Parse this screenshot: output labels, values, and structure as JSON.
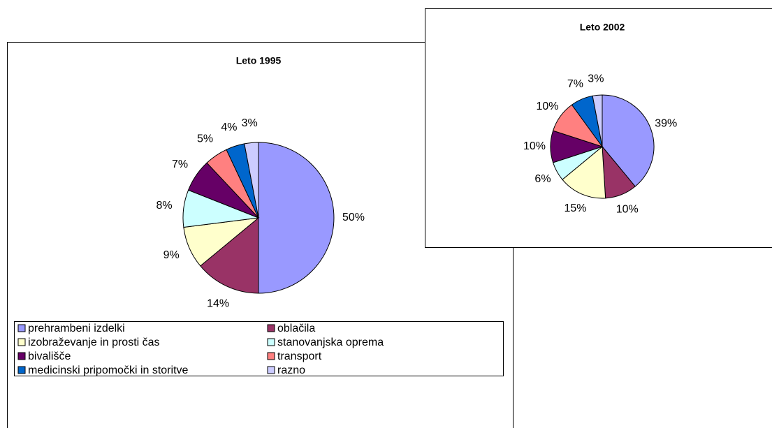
{
  "chart_data": [
    {
      "type": "pie",
      "title": "Leto 1995",
      "categories": [
        "prehrambeni izdelki",
        "oblačila",
        "izobraževanje in prosti čas",
        "stanovanjska oprema",
        "bivališče",
        "transport",
        "medicinski pripomočki in storitve",
        "razno"
      ],
      "values": [
        50,
        14,
        9,
        8,
        7,
        5,
        4,
        3
      ],
      "value_labels": [
        "50%",
        "14%",
        "9%",
        "8%",
        "7%",
        "5%",
        "4%",
        "3%"
      ],
      "colors": [
        "#9999ff",
        "#993366",
        "#ffffcc",
        "#ccffff",
        "#660066",
        "#ff8080",
        "#0066cc",
        "#ccccff"
      ],
      "legend": "bottom"
    },
    {
      "type": "pie",
      "title": "Leto 2002",
      "values": [
        39,
        10,
        15,
        6,
        10,
        10,
        7,
        3
      ],
      "value_labels": [
        "39%",
        "10%",
        "15%",
        "6%",
        "10%",
        "10%",
        "7%",
        "3%"
      ],
      "colors": [
        "#9999ff",
        "#993366",
        "#ffffcc",
        "#ccffff",
        "#660066",
        "#ff8080",
        "#0066cc",
        "#ccccff"
      ]
    }
  ]
}
